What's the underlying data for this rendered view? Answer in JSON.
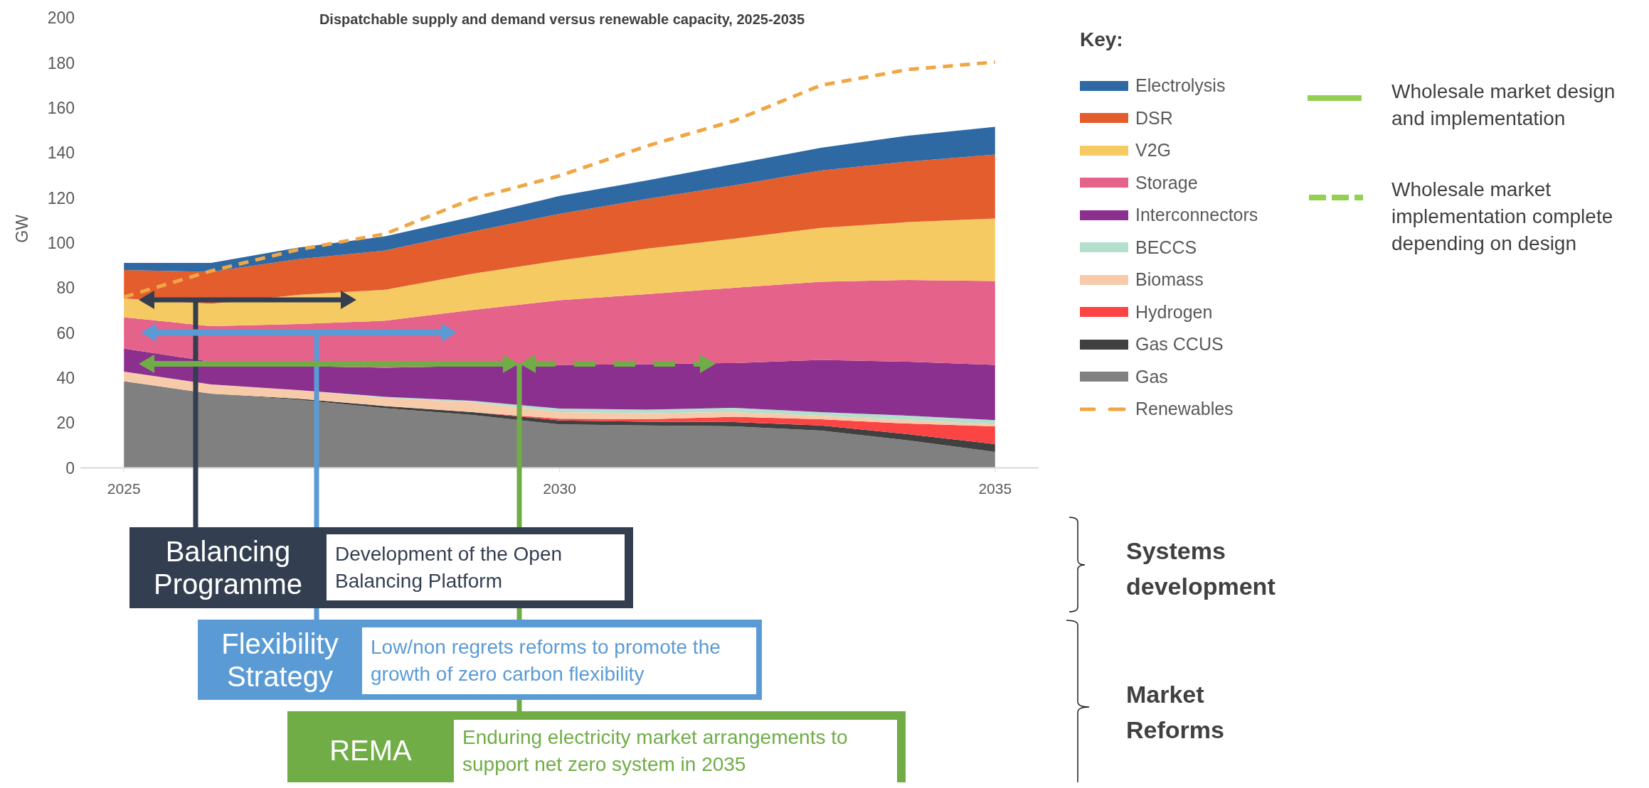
{
  "chart_data": {
    "type": "area",
    "title": "Dispatchable supply and demand versus renewable capacity, 2025-2035",
    "ylabel": "GW",
    "legend_title": "Key:",
    "stacked": true,
    "legend": "right",
    "grid": false,
    "x": [
      2025,
      2026,
      2027,
      2028,
      2029,
      2030,
      2031,
      2032,
      2033,
      2034,
      2035
    ],
    "xlim": [
      2024.5,
      2035.5
    ],
    "xticks": [
      2025,
      2030,
      2035
    ],
    "ylim": [
      0,
      200
    ],
    "yticks": [
      0,
      20,
      40,
      60,
      80,
      100,
      120,
      140,
      160,
      180,
      200
    ],
    "series": [
      {
        "name": "Gas",
        "color": "#808080",
        "values": [
          38.5,
          33,
          30.3,
          26.5,
          23.5,
          19.3,
          18.9,
          18.5,
          16.6,
          12.2,
          7.1
        ]
      },
      {
        "name": "Gas CCUS",
        "color": "#404040",
        "values": [
          0,
          0,
          0.5,
          1,
          1.3,
          1.8,
          1.6,
          1.9,
          2.3,
          2.8,
          3.5
        ]
      },
      {
        "name": "Hydrogen",
        "color": "#fb4545",
        "values": [
          0,
          0,
          0,
          0,
          0,
          0.8,
          1.1,
          2.3,
          2.7,
          4.7,
          7.9
        ]
      },
      {
        "name": "Biomass",
        "color": "#f7cbaa",
        "values": [
          4.3,
          4.1,
          3.8,
          3.6,
          4.4,
          2.9,
          2.7,
          2.1,
          1.6,
          1.5,
          0.8
        ]
      },
      {
        "name": "BECCS",
        "color": "#b3dfcc",
        "values": [
          0,
          0,
          0,
          0.5,
          0.6,
          1.6,
          1.6,
          1.9,
          1.6,
          2,
          1.9
        ]
      },
      {
        "name": "Interconnectors",
        "color": "#8c3090",
        "values": [
          10.2,
          10.1,
          10.7,
          12.9,
          15.5,
          19.4,
          20.2,
          19.9,
          23.2,
          24,
          24.6
        ]
      },
      {
        "name": "Storage",
        "color": "#e5628a",
        "values": [
          13.9,
          15.8,
          18.6,
          20.9,
          24.9,
          28.7,
          31.1,
          33.4,
          34.7,
          36.3,
          37.2
        ]
      },
      {
        "name": "V2G",
        "color": "#f6ca62",
        "values": [
          8.4,
          9.9,
          13,
          13.8,
          16.1,
          17.7,
          20.2,
          21.8,
          23.9,
          25.7,
          27.8
        ]
      },
      {
        "name": "DSR",
        "color": "#e35d2d",
        "values": [
          12.6,
          14.2,
          15.8,
          17.4,
          18.7,
          20.7,
          22.1,
          23.7,
          25.5,
          26.9,
          28.4
        ]
      },
      {
        "name": "Electrolysis",
        "color": "#2e69a4",
        "values": [
          3.2,
          4,
          5.2,
          6.3,
          6.6,
          7.9,
          8.2,
          9.5,
          10.1,
          11.5,
          12.3
        ]
      },
      {
        "name": "Renewables",
        "type": "line",
        "line_style": "dashed",
        "color": "#f0a644",
        "values": [
          75.9,
          87.5,
          97,
          104,
          119.5,
          129.8,
          143,
          154.2,
          170,
          177,
          180.3
        ]
      }
    ],
    "annotations": [
      "Wholesale market design and implementation",
      "Wholesale market implementation complete depending on design",
      "Balancing Programme",
      "Development of the Open Balancing Platform",
      "Flexibility Strategy",
      "Low/non regrets reforms to promote the growth of zero carbon flexibility",
      "REMA",
      "Enduring electricity market arrangements to support net zero system in 2035",
      "Systems development",
      "Market Reforms"
    ]
  }
}
